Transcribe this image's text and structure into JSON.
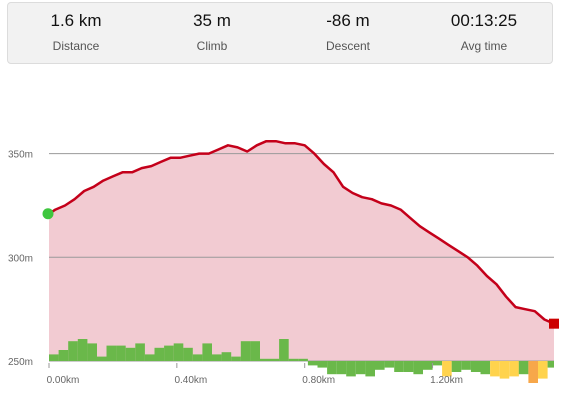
{
  "stats": [
    {
      "value": "1.6 km",
      "label": "Distance"
    },
    {
      "value": "35 m",
      "label": "Climb"
    },
    {
      "value": "-86 m",
      "label": "Descent"
    },
    {
      "value": "00:13:25",
      "label": "Avg time"
    }
  ],
  "chart_data": {
    "type": "area",
    "title": "",
    "xlabel": "",
    "ylabel": "",
    "xlim": [
      0,
      1.58
    ],
    "ylim": [
      250,
      372
    ],
    "y_ticks": [
      {
        "value": 250,
        "label": "250m"
      },
      {
        "value": 300,
        "label": "300m"
      },
      {
        "value": 350,
        "label": "350m"
      }
    ],
    "x_ticks": [
      {
        "value": 0.0,
        "label": "0.00km"
      },
      {
        "value": 0.4,
        "label": "0.40km"
      },
      {
        "value": 0.8,
        "label": "0.80km"
      },
      {
        "value": 1.2,
        "label": "1.20km"
      }
    ],
    "grid": true,
    "colors": {
      "line": "#c4001a",
      "fill": "#f2cbd2",
      "start_marker": "#3ec63e",
      "end_marker": "#cc0000",
      "grade_up": "#6ab84a",
      "grade_down_mild": "#6ab84a",
      "grade_down_moderate": "#ffd34d",
      "grade_down_steep": "#f7a74a"
    },
    "series": [
      {
        "x": [
          0.0,
          0.02,
          0.05,
          0.08,
          0.11,
          0.14,
          0.17,
          0.2,
          0.23,
          0.26,
          0.29,
          0.32,
          0.35,
          0.38,
          0.41,
          0.44,
          0.47,
          0.5,
          0.53,
          0.56,
          0.59,
          0.62,
          0.65,
          0.68,
          0.71,
          0.74,
          0.77,
          0.8,
          0.83,
          0.86,
          0.89,
          0.92,
          0.95,
          0.98,
          1.01,
          1.04,
          1.07,
          1.1,
          1.13,
          1.16,
          1.19,
          1.22,
          1.25,
          1.28,
          1.31,
          1.34,
          1.37,
          1.4,
          1.43,
          1.46,
          1.49,
          1.52,
          1.55,
          1.58
        ],
        "y": [
          321,
          323,
          325,
          328,
          332,
          334,
          337,
          339,
          341,
          341,
          343,
          344,
          346,
          348,
          348,
          349,
          350,
          350,
          352,
          354,
          353,
          351,
          354,
          356,
          356,
          355,
          355,
          354,
          350,
          345,
          341,
          334,
          331,
          329,
          328,
          326,
          325,
          323,
          319,
          315,
          312,
          309,
          306,
          303,
          300,
          296,
          291,
          287,
          281,
          276,
          275,
          274,
          270,
          268
        ]
      }
    ],
    "grade_bars": {
      "x": [
        0.0,
        0.03,
        0.06,
        0.09,
        0.12,
        0.15,
        0.18,
        0.21,
        0.24,
        0.27,
        0.3,
        0.33,
        0.36,
        0.39,
        0.42,
        0.45,
        0.48,
        0.51,
        0.54,
        0.57,
        0.6,
        0.63,
        0.66,
        0.69,
        0.72,
        0.75,
        0.78,
        0.81,
        0.84,
        0.87,
        0.9,
        0.93,
        0.96,
        0.99,
        1.02,
        1.05,
        1.08,
        1.11,
        1.14,
        1.17,
        1.2,
        1.23,
        1.26,
        1.29,
        1.32,
        1.35,
        1.38,
        1.41,
        1.44,
        1.47,
        1.5,
        1.53,
        1.56
      ],
      "values": [
        3,
        5,
        9,
        10,
        8,
        2,
        7,
        7,
        6,
        8,
        3,
        6,
        7,
        8,
        6,
        3,
        8,
        3,
        4,
        2,
        9,
        9,
        1,
        1,
        10,
        1,
        1,
        -2,
        -3,
        -6,
        -6,
        -7,
        -6,
        -7,
        -4,
        -3,
        -5,
        -5,
        -6,
        -4,
        -2,
        -7,
        -5,
        -4,
        -5,
        -6,
        -7,
        -8,
        -7,
        -6,
        -10,
        -8,
        -3
      ],
      "categories": [
        "up",
        "up",
        "up",
        "up",
        "up",
        "up",
        "up",
        "up",
        "up",
        "up",
        "up",
        "up",
        "up",
        "up",
        "up",
        "up",
        "up",
        "up",
        "up",
        "up",
        "up",
        "up",
        "up",
        "up",
        "up",
        "up",
        "up",
        "down",
        "down",
        "down",
        "down",
        "down",
        "down",
        "down",
        "down",
        "down",
        "down",
        "down",
        "down",
        "down",
        "down",
        "down-moderate",
        "down",
        "down",
        "down",
        "down",
        "down-moderate",
        "down-moderate",
        "down-moderate",
        "down",
        "down-steep",
        "down-moderate",
        "down"
      ]
    }
  }
}
